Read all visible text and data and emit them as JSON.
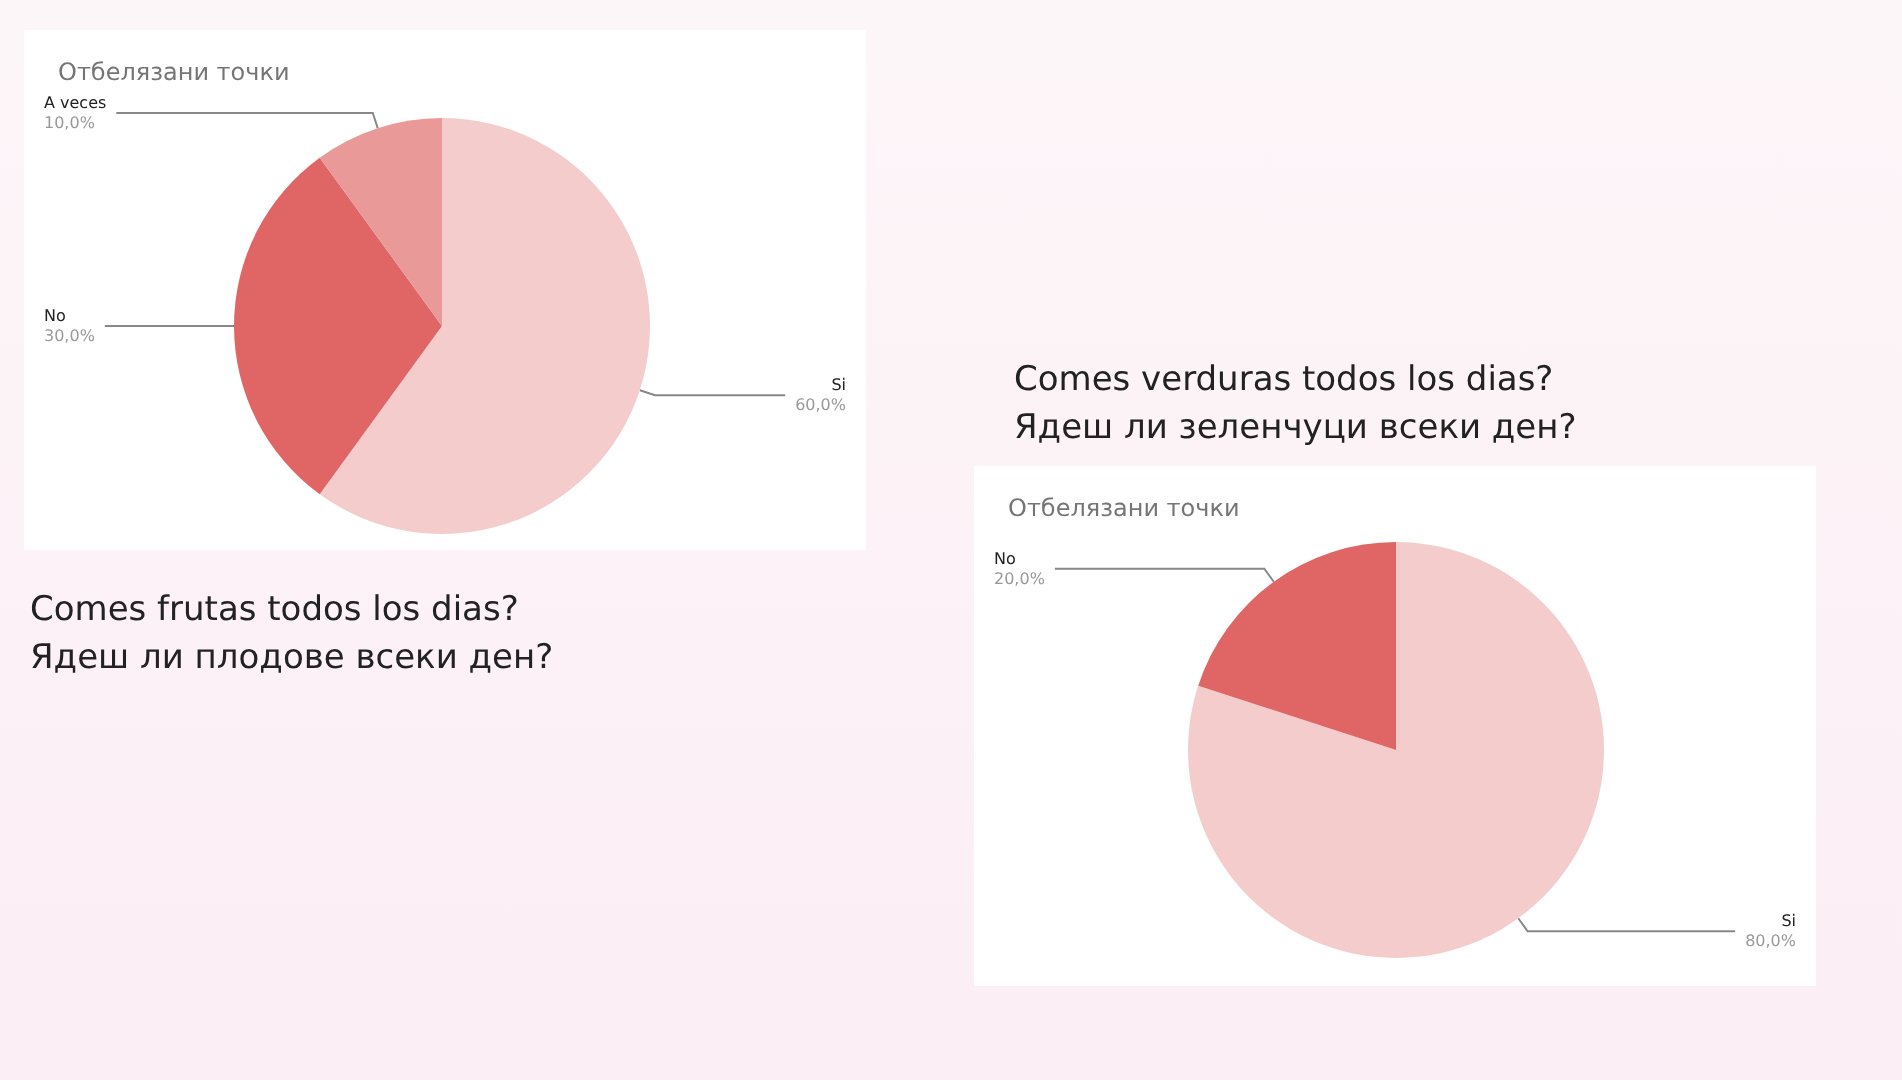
{
  "chart_data": [
    {
      "type": "pie",
      "title": "Отбелязани точки",
      "subtitle": "Comes frutas todos los dias?\nЯдеш ли плодове всеки ден?",
      "categories": [
        "Si",
        "No",
        "A veces"
      ],
      "values": [
        60,
        30,
        10
      ],
      "value_labels": [
        "60,0%",
        "30,0%",
        "10,0%"
      ],
      "colors": [
        "#f4cccc",
        "#e06666",
        "#ea9999"
      ],
      "legend": false
    },
    {
      "type": "pie",
      "title": "Отбелязани точки",
      "subtitle": "Comes verduras todos los dias?\nЯдеш ли зеленчуци всеки ден?",
      "categories": [
        "Si",
        "No"
      ],
      "values": [
        80,
        20
      ],
      "value_labels": [
        "80,0%",
        "20,0%"
      ],
      "colors": [
        "#f4cccc",
        "#e06666"
      ],
      "legend": false
    }
  ]
}
